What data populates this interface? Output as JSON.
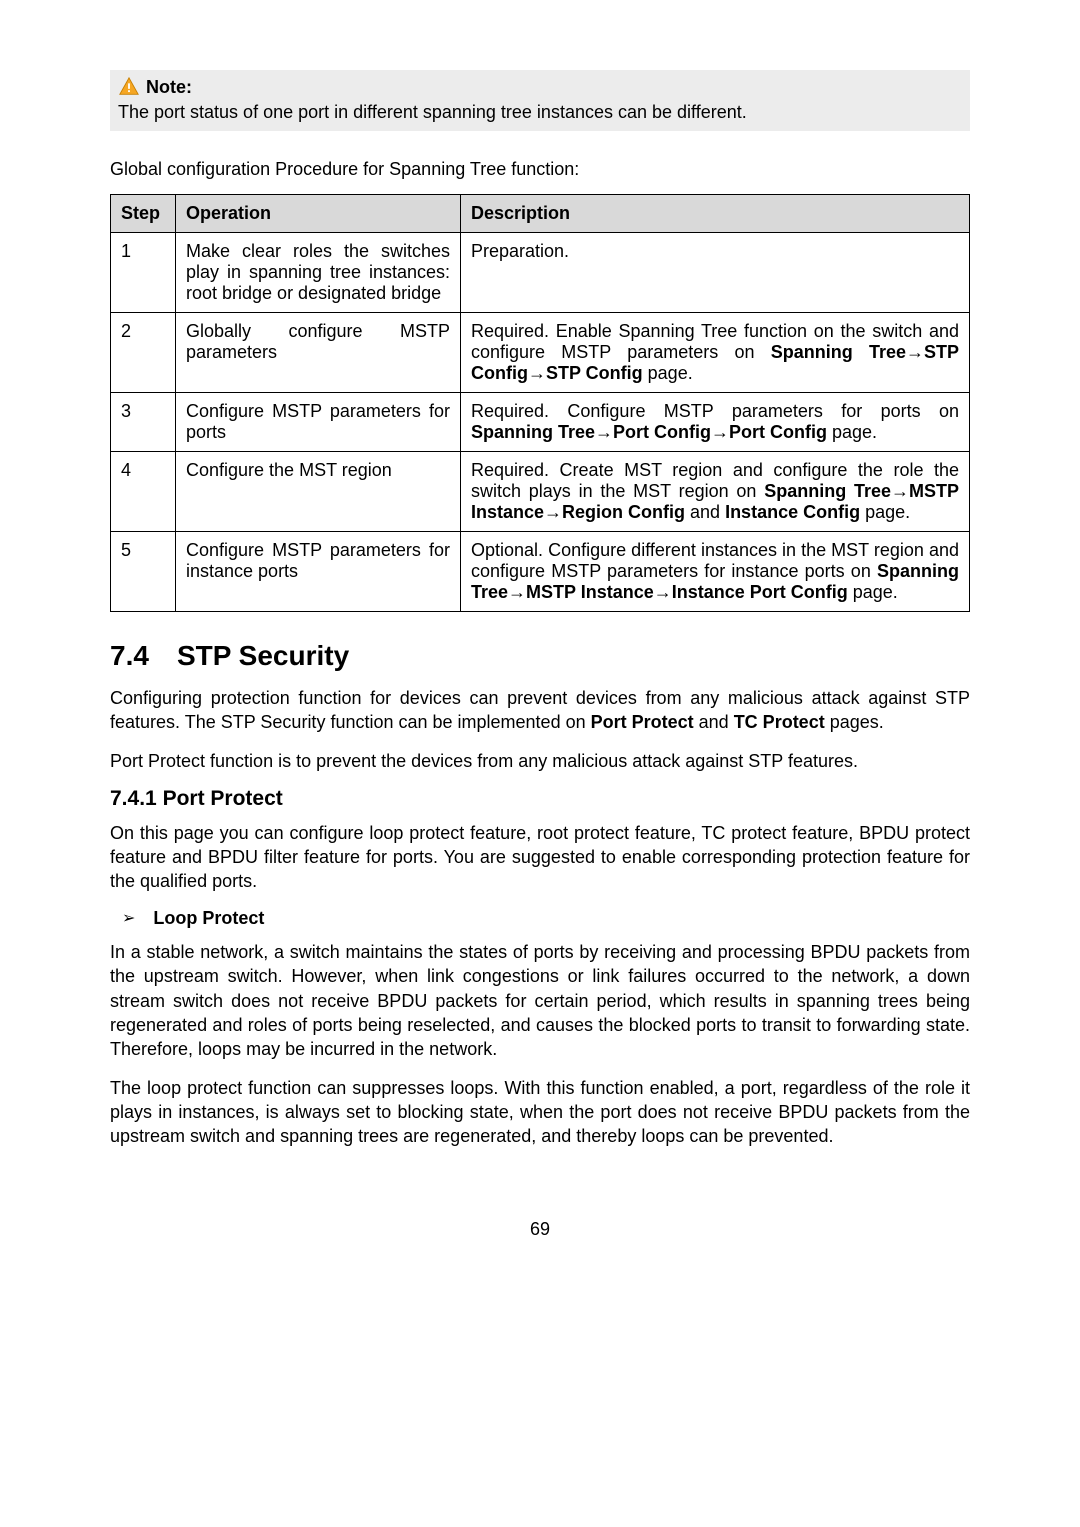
{
  "note": {
    "label": "Note:",
    "text": "The port status of one port in different spanning tree instances can be different."
  },
  "intro": "Global configuration Procedure for Spanning Tree function:",
  "table": {
    "headers": {
      "step": "Step",
      "operation": "Operation",
      "description": "Description"
    },
    "rows": [
      {
        "step": "1",
        "op": "Make clear roles the switches play in spanning tree instances: root bridge or designated bridge",
        "desc_plain": "Preparation.",
        "desc_html": "Preparation."
      },
      {
        "step": "2",
        "op": "Globally configure MSTP parameters",
        "desc_html": "Required. Enable Spanning Tree function on the switch and configure MSTP parameters on <b>Spanning Tree→STP Config→STP Config</b> page."
      },
      {
        "step": "3",
        "op": "Configure MSTP parameters for ports",
        "desc_html": "Required. Configure MSTP parameters for ports on <b>Spanning Tree→Port Config→Port Config</b> page."
      },
      {
        "step": "4",
        "op": "Configure the MST region",
        "desc_html": "Required. Create MST region and configure the role the switch plays in the MST region on <b>Spanning Tree→MSTP Instance→Region Config</b> and <b>Instance Config</b> page."
      },
      {
        "step": "5",
        "op": "Configure MSTP parameters for instance ports",
        "desc_html": "Optional. Configure different instances in the MST region and configure MSTP parameters for instance ports on <b>Spanning Tree→MSTP Instance→Instance Port Config</b> page."
      }
    ]
  },
  "section": {
    "num": "7.4",
    "title": "STP Security",
    "p1_html": "Configuring protection function for devices can prevent devices from any malicious attack against STP features. The STP Security function can be implemented on <b>Port Protect</b> and <b>TC Protect</b> pages.",
    "p2": "Port Protect function is to prevent the devices from any malicious attack against STP features."
  },
  "subsection": {
    "num": "7.4.1",
    "title": "Port Protect",
    "p1": "On this page you can configure loop protect feature, root protect feature, TC protect feature, BPDU protect feature and BPDU filter feature for ports. You are suggested to enable corresponding protection feature for the qualified ports.",
    "bullet": "Loop Protect",
    "p2": "In a stable network, a switch maintains the states of ports by receiving and processing BPDU packets from the upstream switch. However, when link congestions or link failures occurred to the network, a down stream switch does not receive BPDU packets for certain period, which results in spanning trees being regenerated and roles of ports being reselected, and causes the blocked ports to transit to forwarding state. Therefore, loops may be incurred in the network.",
    "p3": "The loop protect function can suppresses loops. With this function enabled, a port, regardless of the role it plays in instances, is always set to blocking state, when the port does not receive BPDU packets from the upstream switch and spanning trees are regenerated, and thereby loops can be prevented."
  },
  "pagenum": "69"
}
